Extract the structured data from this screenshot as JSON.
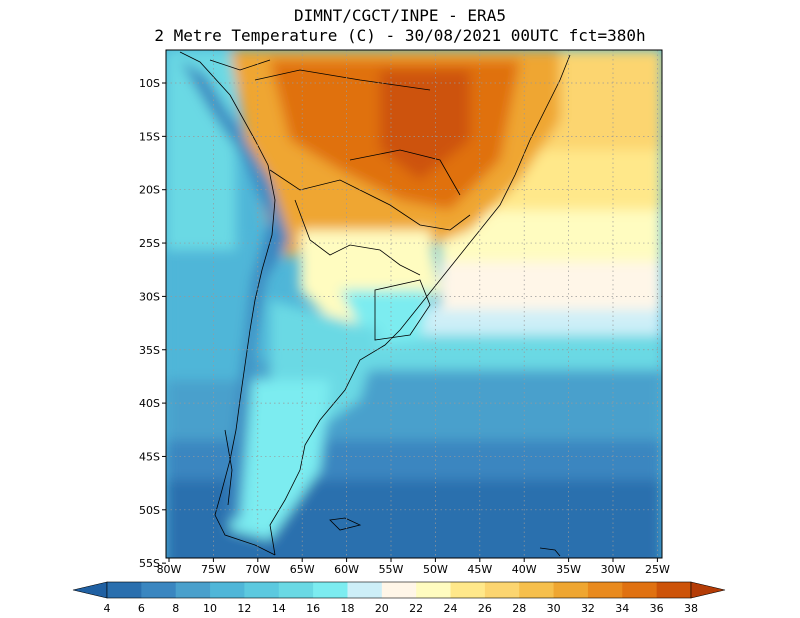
{
  "header": {
    "line1": "DIMNT/CGCT/INPE  -   ERA5",
    "line2": "2 Metre Temperature (C) -  30/08/2021 00UTC fct=380h"
  },
  "map": {
    "lat_labels": [
      "10S",
      "15S",
      "20S",
      "25S",
      "30S",
      "35S",
      "40S",
      "45S",
      "50S",
      "55S"
    ],
    "lon_labels": [
      "80W",
      "75W",
      "70W",
      "65W",
      "60W",
      "55W",
      "50W",
      "45W",
      "40W",
      "35W",
      "30W",
      "25W"
    ],
    "grid": "dotted"
  },
  "colorbar": {
    "labels": [
      "4",
      "6",
      "8",
      "10",
      "12",
      "14",
      "16",
      "18",
      "20",
      "22",
      "24",
      "26",
      "28",
      "30",
      "32",
      "34",
      "36",
      "38"
    ],
    "colors": [
      "#2a6fae",
      "#3a86c0",
      "#4aa0cc",
      "#4fb6d8",
      "#5cc9df",
      "#6ad9e4",
      "#7cecf0",
      "#cdeff8",
      "#fff6e8",
      "#fffcc0",
      "#ffe88a",
      "#fcd570",
      "#f6bf4c",
      "#efa631",
      "#e98a1e",
      "#e07111",
      "#cd5309"
    ],
    "left_arrow_color": "#2060a2",
    "right_arrow_color": "#b43c06"
  }
}
